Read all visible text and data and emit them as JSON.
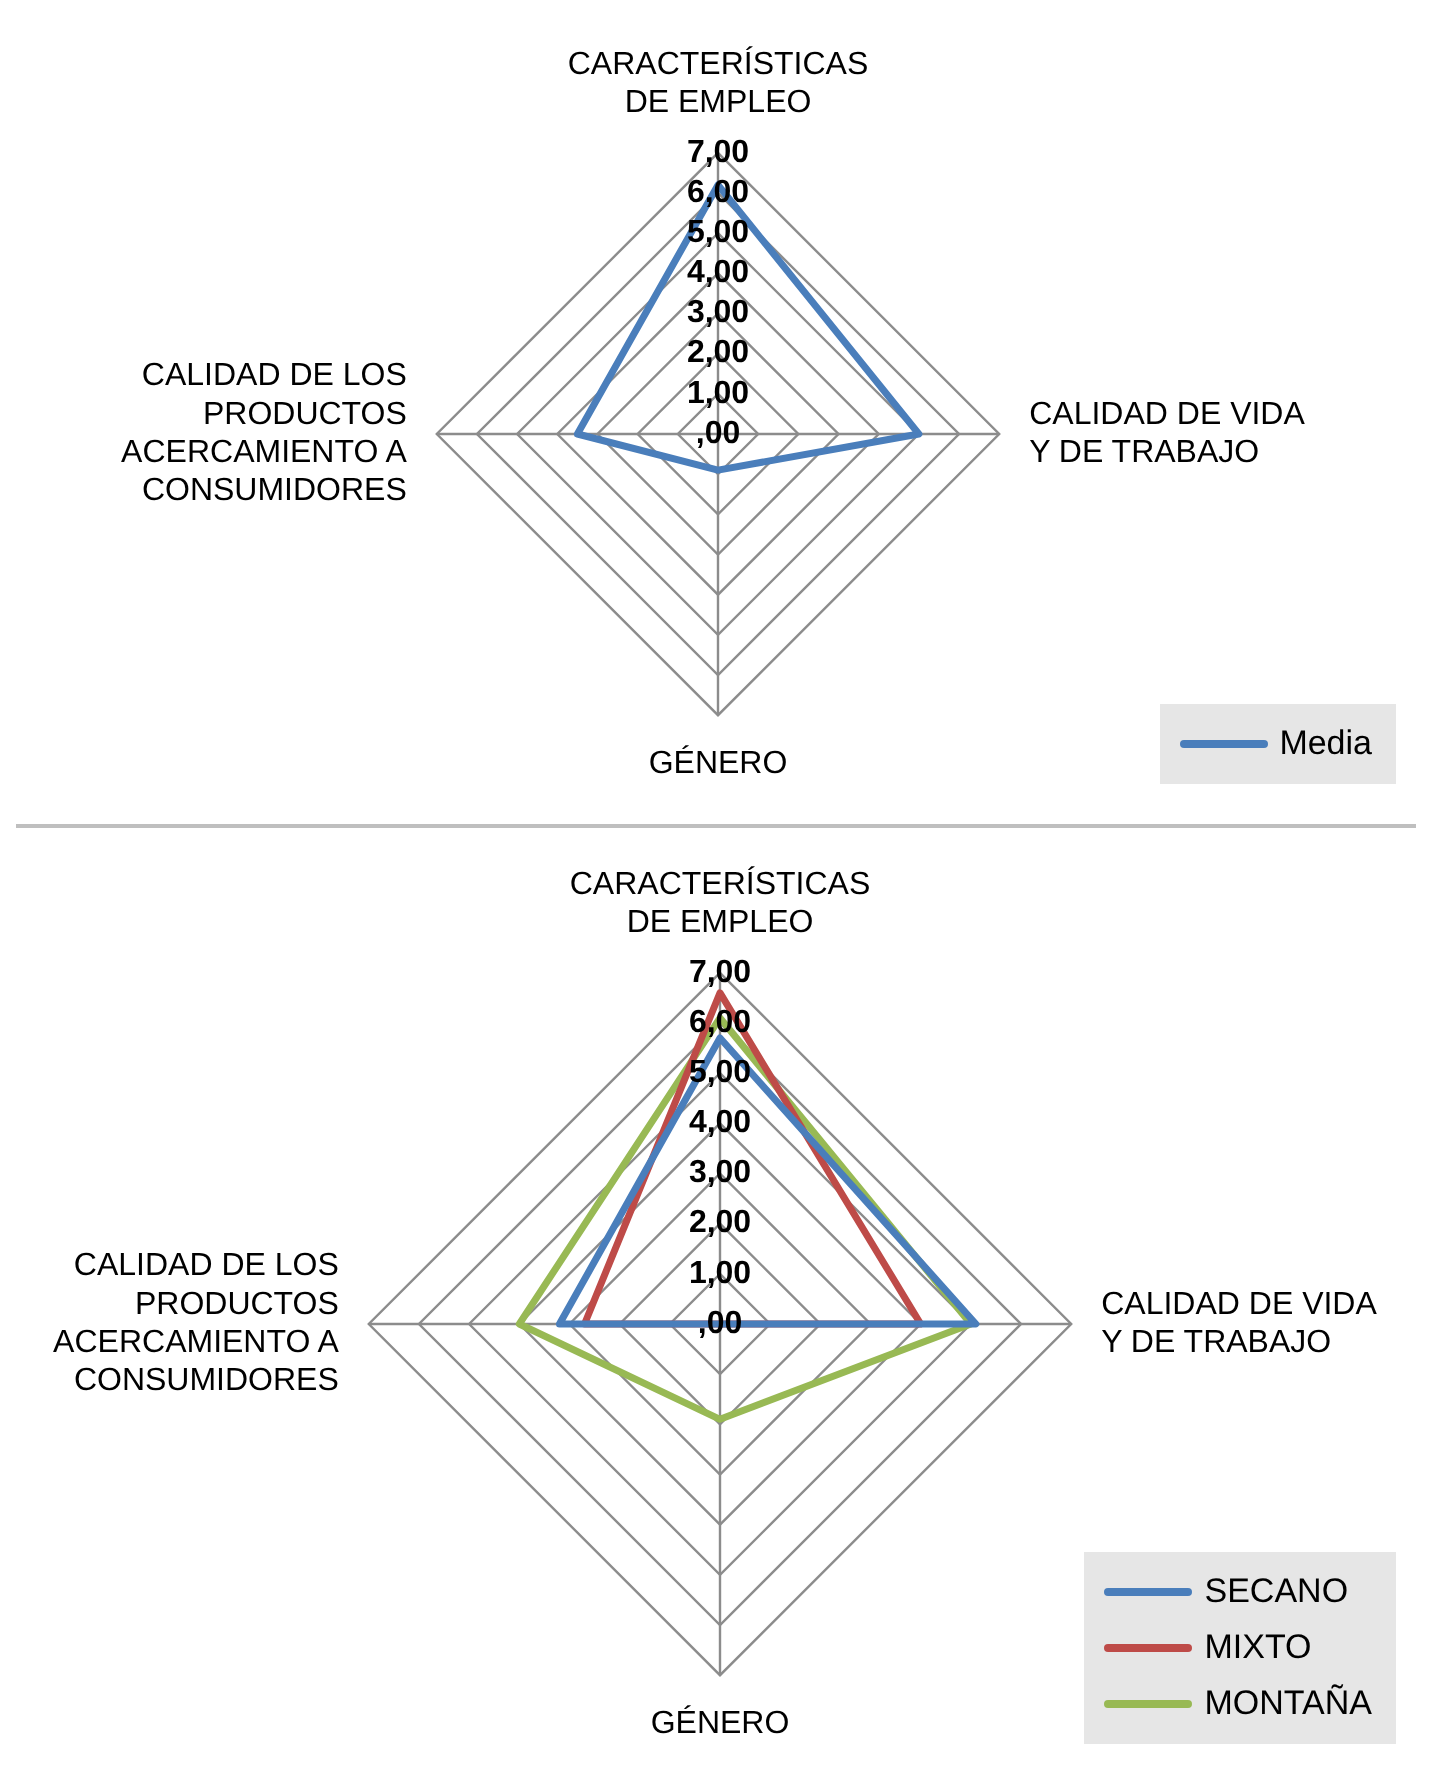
{
  "chart_data": [
    {
      "type": "radar",
      "categories": [
        "CARACTERÍSTICAS DE EMPLEO",
        "CALIDAD DE VIDA Y DE TRABAJO",
        "GÉNERO",
        "CALIDAD DE LOS PRODUCTOS ACERCAMIENTO A CONSUMIDORES"
      ],
      "series": [
        {
          "name": "Media",
          "color": "#4a7ebb",
          "values": [
            6.2,
            5.0,
            0.9,
            3.5
          ]
        }
      ],
      "ylim": [
        0,
        7
      ],
      "yticks": [
        {
          "value": 0,
          "label": ",00"
        },
        {
          "value": 1,
          "label": "1,00"
        },
        {
          "value": 2,
          "label": "2,00"
        },
        {
          "value": 3,
          "label": "3,00"
        },
        {
          "value": 4,
          "label": "4,00"
        },
        {
          "value": 5,
          "label": "5,00"
        },
        {
          "value": 6,
          "label": "6,00"
        },
        {
          "value": 7,
          "label": "7,00"
        }
      ],
      "grid": true,
      "legend": "bottom right",
      "marker": "none"
    },
    {
      "type": "radar",
      "categories": [
        "CARACTERÍSTICAS DE EMPLEO",
        "CALIDAD DE VIDA Y DE TRABAJO",
        "GÉNERO",
        "CALIDAD DE LOS PRODUCTOS ACERCAMIENTO A CONSUMIDORES"
      ],
      "series": [
        {
          "name": "SECANO",
          "color": "#4a7ebb",
          "values": [
            5.7,
            5.1,
            0,
            3.2
          ]
        },
        {
          "name": "MIXTO",
          "color": "#be4b48",
          "values": [
            6.6,
            4.0,
            0,
            2.7
          ]
        },
        {
          "name": "MONTAÑA",
          "color": "#98b954",
          "values": [
            6.1,
            5.0,
            1.9,
            4.0
          ]
        }
      ],
      "ylim": [
        0,
        7
      ],
      "yticks": [
        {
          "value": 0,
          "label": ",00"
        },
        {
          "value": 1,
          "label": "1,00"
        },
        {
          "value": 2,
          "label": "2,00"
        },
        {
          "value": 3,
          "label": "3,00"
        },
        {
          "value": 4,
          "label": "4,00"
        },
        {
          "value": 5,
          "label": "5,00"
        },
        {
          "value": 6,
          "label": "6,00"
        },
        {
          "value": 7,
          "label": "7,00"
        }
      ],
      "grid": true,
      "legend": "bottom right",
      "marker": "none"
    }
  ]
}
